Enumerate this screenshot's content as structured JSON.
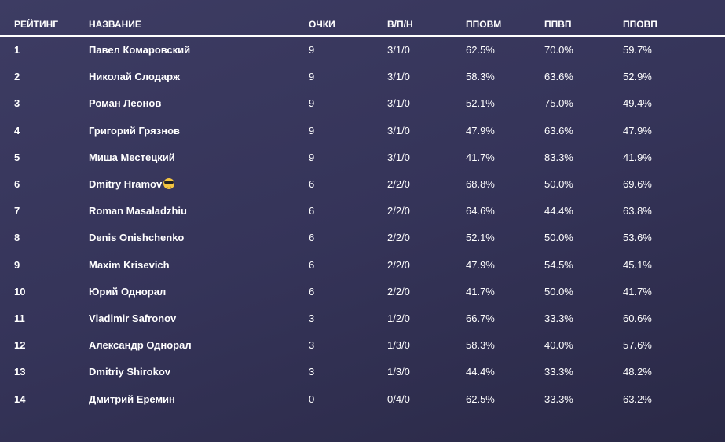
{
  "table": {
    "headers": [
      "РЕЙТИНГ",
      "НАЗВАНИЕ",
      "ОЧКИ",
      "В/П/Н",
      "ППОВМ",
      "ППВП",
      "ППОВП"
    ],
    "rows": [
      [
        "1",
        "Павел Комаровский",
        "9",
        "3/1/0",
        "62.5%",
        "70.0%",
        "59.7%"
      ],
      [
        "2",
        "Николай Слодарж",
        "9",
        "3/1/0",
        "58.3%",
        "63.6%",
        "52.9%"
      ],
      [
        "3",
        "Роман Леонов",
        "9",
        "3/1/0",
        "52.1%",
        "75.0%",
        "49.4%"
      ],
      [
        "4",
        "Григорий Грязнов",
        "9",
        "3/1/0",
        "47.9%",
        "63.6%",
        "47.9%"
      ],
      [
        "5",
        "Миша Местецкий",
        "9",
        "3/1/0",
        "41.7%",
        "83.3%",
        "41.9%"
      ],
      [
        "6",
        "Dmitry Hramov",
        "6",
        "2/2/0",
        "68.8%",
        "50.0%",
        "69.6%"
      ],
      [
        "7",
        "Roman Masaladzhiu",
        "6",
        "2/2/0",
        "64.6%",
        "44.4%",
        "63.8%"
      ],
      [
        "8",
        "Denis Onishchenko",
        "6",
        "2/2/0",
        "52.1%",
        "50.0%",
        "53.6%"
      ],
      [
        "9",
        "Maxim Krisevich",
        "6",
        "2/2/0",
        "47.9%",
        "54.5%",
        "45.1%"
      ],
      [
        "10",
        "Юрий Однорал",
        "6",
        "2/2/0",
        "41.7%",
        "50.0%",
        "41.7%"
      ],
      [
        "11",
        "Vladimir Safronov",
        "3",
        "1/2/0",
        "66.7%",
        "33.3%",
        "60.6%"
      ],
      [
        "12",
        "Александр Однорал",
        "3",
        "1/3/0",
        "58.3%",
        "40.0%",
        "57.6%"
      ],
      [
        "13",
        "Dmitriy Shirokov",
        "3",
        "1/3/0",
        "44.4%",
        "33.3%",
        "48.2%"
      ],
      [
        "14",
        "Дмитрий Еремин",
        "0",
        "0/4/0",
        "62.5%",
        "33.3%",
        "63.2%"
      ]
    ],
    "emoji_row": 5,
    "emoji_icon": "sunglasses-emoji-icon"
  },
  "colors": {
    "background": "#35345a",
    "text": "#ffffff"
  }
}
